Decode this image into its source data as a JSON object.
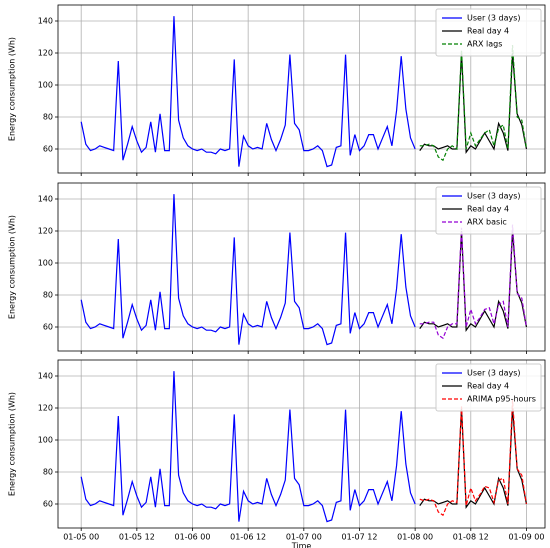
{
  "chart_data": [
    {
      "type": "line",
      "ylabel": "Energy consumption (Wh)",
      "xlim": [
        -5,
        100
      ],
      "ylim": [
        45,
        150
      ],
      "yticks": [
        60,
        80,
        100,
        120,
        140
      ],
      "grid": true,
      "legend": "upper right",
      "series": [
        {
          "name": "User (3 days)",
          "color": "#0000ff",
          "linestyle": "solid",
          "x": [
            0,
            1,
            2,
            3,
            4,
            5,
            6,
            7,
            8,
            9,
            10,
            11,
            12,
            13,
            14,
            15,
            16,
            17,
            18,
            19,
            20,
            21,
            22,
            23,
            24,
            25,
            26,
            27,
            28,
            29,
            30,
            31,
            32,
            33,
            34,
            35,
            36,
            37,
            38,
            39,
            40,
            41,
            42,
            43,
            44,
            45,
            46,
            47,
            48,
            49,
            50,
            51,
            52,
            53,
            54,
            55,
            56,
            57,
            58,
            59,
            60,
            61,
            62,
            63,
            64,
            65,
            66,
            67,
            68,
            69,
            70,
            71,
            72
          ],
          "values": [
            77,
            63,
            59,
            60,
            62,
            61,
            60,
            59,
            115,
            53,
            63,
            74,
            65,
            58,
            61,
            77,
            58,
            82,
            59,
            59,
            143,
            78,
            67,
            62,
            60,
            59,
            60,
            58,
            58,
            57,
            60,
            59,
            60,
            116,
            49,
            68,
            62,
            60,
            61,
            60,
            76,
            66,
            59,
            66,
            75,
            119,
            76,
            72,
            59,
            59,
            60,
            62,
            59,
            49,
            50,
            61,
            62,
            119,
            56,
            69,
            59,
            62,
            69,
            69,
            60,
            67,
            74,
            62,
            84,
            118,
            85,
            67,
            60
          ]
        },
        {
          "name": "Real day 4",
          "color": "#000000",
          "linestyle": "solid",
          "x": [
            73,
            74,
            75,
            76,
            77,
            78,
            79,
            80,
            81,
            82,
            83,
            84,
            85,
            86,
            87,
            88,
            89,
            90,
            91,
            92,
            93,
            94,
            95,
            96
          ],
          "values": [
            59,
            63,
            62,
            62,
            60,
            61,
            62,
            60,
            60,
            120,
            58,
            62,
            60,
            65,
            70,
            65,
            60,
            76,
            70,
            59,
            120,
            82,
            75,
            60
          ]
        },
        {
          "name": "ARX lags",
          "color": "#008000",
          "linestyle": "dashed",
          "x": [
            73,
            74,
            75,
            76,
            77,
            78,
            79,
            80,
            81,
            82,
            83,
            84,
            85,
            86,
            87,
            88,
            89,
            90,
            91,
            92,
            93,
            94,
            95,
            96
          ],
          "values": [
            62,
            62,
            63,
            62,
            55,
            53,
            60,
            62,
            60,
            122,
            60,
            70,
            62,
            66,
            70,
            72,
            62,
            73,
            75,
            60,
            125,
            80,
            78,
            60
          ]
        }
      ]
    },
    {
      "type": "line",
      "ylabel": "Energy consumption (Wh)",
      "xlim": [
        -5,
        100
      ],
      "ylim": [
        45,
        150
      ],
      "yticks": [
        60,
        80,
        100,
        120,
        140
      ],
      "grid": true,
      "legend": "upper right",
      "series": [
        {
          "name": "User (3 days)",
          "color": "#0000ff",
          "linestyle": "solid",
          "x": [
            0,
            1,
            2,
            3,
            4,
            5,
            6,
            7,
            8,
            9,
            10,
            11,
            12,
            13,
            14,
            15,
            16,
            17,
            18,
            19,
            20,
            21,
            22,
            23,
            24,
            25,
            26,
            27,
            28,
            29,
            30,
            31,
            32,
            33,
            34,
            35,
            36,
            37,
            38,
            39,
            40,
            41,
            42,
            43,
            44,
            45,
            46,
            47,
            48,
            49,
            50,
            51,
            52,
            53,
            54,
            55,
            56,
            57,
            58,
            59,
            60,
            61,
            62,
            63,
            64,
            65,
            66,
            67,
            68,
            69,
            70,
            71,
            72
          ],
          "values": [
            77,
            63,
            59,
            60,
            62,
            61,
            60,
            59,
            115,
            53,
            63,
            74,
            65,
            58,
            61,
            77,
            58,
            82,
            59,
            59,
            143,
            78,
            67,
            62,
            60,
            59,
            60,
            58,
            58,
            57,
            60,
            59,
            60,
            116,
            49,
            68,
            62,
            60,
            61,
            60,
            76,
            66,
            59,
            66,
            75,
            119,
            76,
            72,
            59,
            59,
            60,
            62,
            59,
            49,
            50,
            61,
            62,
            119,
            56,
            69,
            59,
            62,
            69,
            69,
            60,
            67,
            74,
            62,
            84,
            118,
            85,
            67,
            60
          ]
        },
        {
          "name": "Real day 4",
          "color": "#000000",
          "linestyle": "solid",
          "x": [
            73,
            74,
            75,
            76,
            77,
            78,
            79,
            80,
            81,
            82,
            83,
            84,
            85,
            86,
            87,
            88,
            89,
            90,
            91,
            92,
            93,
            94,
            95,
            96
          ],
          "values": [
            59,
            63,
            62,
            62,
            60,
            61,
            62,
            60,
            60,
            120,
            58,
            62,
            60,
            65,
            70,
            65,
            60,
            76,
            70,
            59,
            120,
            82,
            75,
            60
          ]
        },
        {
          "name": "ARX basic",
          "color": "#9400d3",
          "linestyle": "dashed",
          "x": [
            73,
            74,
            75,
            76,
            77,
            78,
            79,
            80,
            81,
            82,
            83,
            84,
            85,
            86,
            87,
            88,
            89,
            90,
            91,
            92,
            93,
            94,
            95,
            96
          ],
          "values": [
            62,
            62,
            63,
            63,
            55,
            53,
            60,
            62,
            62,
            122,
            60,
            71,
            62,
            66,
            71,
            72,
            62,
            74,
            76,
            60,
            124,
            81,
            78,
            60
          ]
        }
      ]
    },
    {
      "type": "line",
      "ylabel": "Energy consumption (Wh)",
      "xlabel": "Time",
      "xlim": [
        -5,
        100
      ],
      "ylim": [
        45,
        150
      ],
      "yticks": [
        60,
        80,
        100,
        120,
        140
      ],
      "grid": true,
      "legend": "upper right",
      "xticks": [
        {
          "value": 0,
          "label": "01-05 00"
        },
        {
          "value": 12,
          "label": "01-05 12"
        },
        {
          "value": 24,
          "label": "01-06 00"
        },
        {
          "value": 36,
          "label": "01-06 12"
        },
        {
          "value": 48,
          "label": "01-07 00"
        },
        {
          "value": 60,
          "label": "01-07 12"
        },
        {
          "value": 72,
          "label": "01-08 00"
        },
        {
          "value": 84,
          "label": "01-08 12"
        },
        {
          "value": 96,
          "label": "01-09 00"
        }
      ],
      "series": [
        {
          "name": "User (3 days)",
          "color": "#0000ff",
          "linestyle": "solid",
          "x": [
            0,
            1,
            2,
            3,
            4,
            5,
            6,
            7,
            8,
            9,
            10,
            11,
            12,
            13,
            14,
            15,
            16,
            17,
            18,
            19,
            20,
            21,
            22,
            23,
            24,
            25,
            26,
            27,
            28,
            29,
            30,
            31,
            32,
            33,
            34,
            35,
            36,
            37,
            38,
            39,
            40,
            41,
            42,
            43,
            44,
            45,
            46,
            47,
            48,
            49,
            50,
            51,
            52,
            53,
            54,
            55,
            56,
            57,
            58,
            59,
            60,
            61,
            62,
            63,
            64,
            65,
            66,
            67,
            68,
            69,
            70,
            71,
            72
          ],
          "values": [
            77,
            63,
            59,
            60,
            62,
            61,
            60,
            59,
            115,
            53,
            63,
            74,
            65,
            58,
            61,
            77,
            58,
            82,
            59,
            59,
            143,
            78,
            67,
            62,
            60,
            59,
            60,
            58,
            58,
            57,
            60,
            59,
            60,
            116,
            49,
            68,
            62,
            60,
            61,
            60,
            76,
            66,
            59,
            66,
            75,
            119,
            76,
            72,
            59,
            59,
            60,
            62,
            59,
            49,
            50,
            61,
            62,
            119,
            56,
            69,
            59,
            62,
            69,
            69,
            60,
            67,
            74,
            62,
            84,
            118,
            85,
            67,
            60
          ]
        },
        {
          "name": "Real day 4",
          "color": "#000000",
          "linestyle": "solid",
          "x": [
            73,
            74,
            75,
            76,
            77,
            78,
            79,
            80,
            81,
            82,
            83,
            84,
            85,
            86,
            87,
            88,
            89,
            90,
            91,
            92,
            93,
            94,
            95,
            96
          ],
          "values": [
            59,
            63,
            62,
            62,
            60,
            61,
            62,
            60,
            60,
            120,
            58,
            62,
            60,
            65,
            70,
            65,
            60,
            76,
            70,
            59,
            120,
            82,
            75,
            60
          ]
        },
        {
          "name": "ARIMA p95-hours",
          "color": "#ff0000",
          "linestyle": "dashed",
          "x": [
            73,
            74,
            75,
            76,
            77,
            78,
            79,
            80,
            81,
            82,
            83,
            84,
            85,
            86,
            87,
            88,
            89,
            90,
            91,
            92,
            93,
            94,
            95,
            96
          ],
          "values": [
            63,
            62,
            63,
            62,
            55,
            53,
            60,
            62,
            61,
            121,
            59,
            70,
            62,
            66,
            71,
            70,
            61,
            75,
            76,
            60,
            125,
            82,
            78,
            60
          ]
        }
      ]
    }
  ]
}
